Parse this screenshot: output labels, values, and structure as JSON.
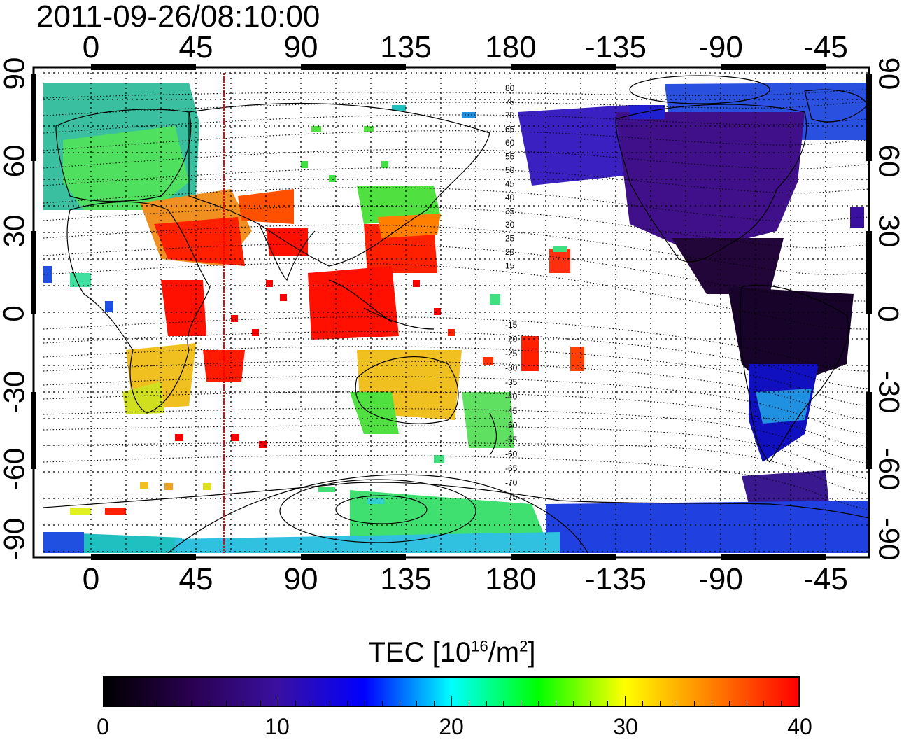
{
  "title": "2011-09-26/08:10:00",
  "lon_tick_labels": [
    "0",
    "45",
    "90",
    "135",
    "180",
    "-135",
    "-90",
    "-45"
  ],
  "lat_tick_labels": [
    "90",
    "60",
    "30",
    "0",
    "-30",
    "-60",
    "-90"
  ],
  "colorbar": {
    "title_prefix": "TEC  [10",
    "title_exp1": "16",
    "title_mid": "/m",
    "title_exp2": "2",
    "title_suffix": "]",
    "tick_labels": [
      "0",
      "10",
      "20",
      "30",
      "40"
    ],
    "range": [
      0,
      40
    ]
  },
  "contour_labels_north": [
    "80",
    "75",
    "70",
    "65",
    "60",
    "55",
    "50",
    "45",
    "40",
    "35",
    "30",
    "25",
    "20",
    "15"
  ],
  "contour_labels_south": [
    "-15",
    "-20",
    "-25",
    "-30",
    "-35",
    "-40",
    "-45",
    "-50",
    "-55",
    "-60",
    "-65",
    "-70",
    "-75"
  ],
  "colors": {
    "colormap": [
      "#000000",
      "#2a0050",
      "#3a10a0",
      "#0000ff",
      "#00ffff",
      "#00ff00",
      "#ffff00",
      "#ff8000",
      "#ff0000"
    ],
    "marker_line": "#ff0000"
  },
  "marker_longitude": 57
}
